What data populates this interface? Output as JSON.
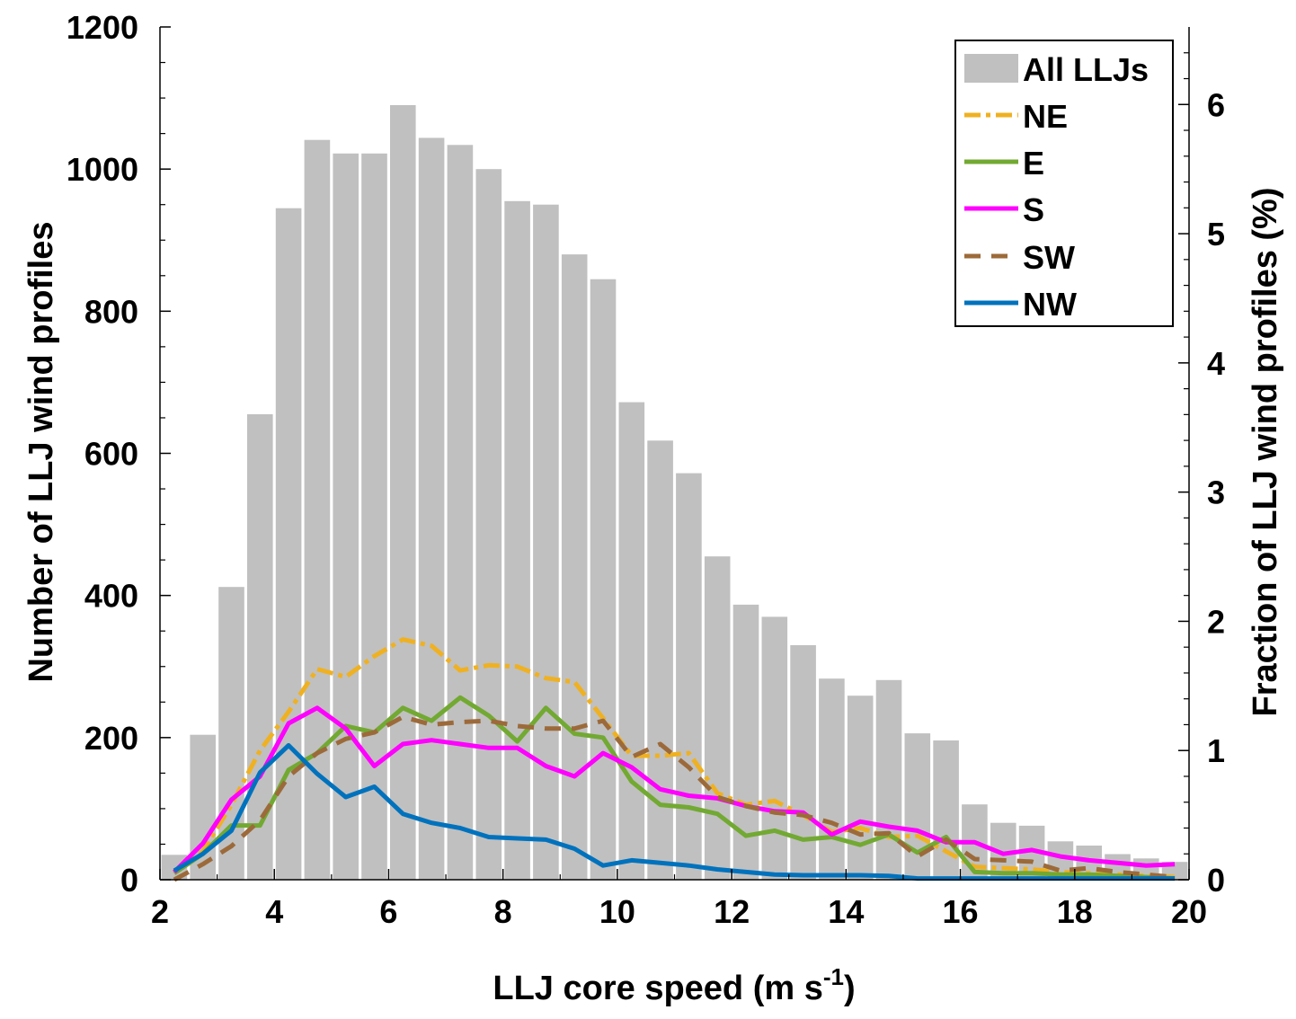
{
  "chart_data": {
    "type": "bar",
    "xlabel_main": "LLJ core speed (m s",
    "xlabel_sup": "-1",
    "xlabel_end": ")",
    "ylabel_left": "Number of LLJ wind profiles",
    "ylabel_right": "Fraction of LLJ wind profiles (%)",
    "xlim": [
      2,
      20
    ],
    "ylim_left": [
      0,
      1200
    ],
    "ylim_right": [
      0,
      6.6
    ],
    "x_ticks": [
      2,
      4,
      6,
      8,
      10,
      12,
      14,
      16,
      18,
      20
    ],
    "y_left_ticks": [
      0,
      200,
      400,
      600,
      800,
      1000,
      1200
    ],
    "y_right_ticks": [
      0,
      1,
      2,
      3,
      4,
      5,
      6
    ],
    "legend_position": "top-right",
    "bars": {
      "name": "All LLJs",
      "color": "#c0c0c0",
      "x": [
        2.25,
        2.75,
        3.25,
        3.75,
        4.25,
        4.75,
        5.25,
        5.75,
        6.25,
        6.75,
        7.25,
        7.75,
        8.25,
        8.75,
        9.25,
        9.75,
        10.25,
        10.75,
        11.25,
        11.75,
        12.25,
        12.75,
        13.25,
        13.75,
        14.25,
        14.75,
        15.25,
        15.75,
        16.25,
        16.75,
        17.25,
        17.75,
        18.25,
        18.75,
        19.25,
        19.75
      ],
      "values": [
        35,
        204,
        412,
        655,
        945,
        1041,
        1022,
        1022,
        1090,
        1044,
        1034,
        1000,
        955,
        950,
        880,
        845,
        672,
        618,
        572,
        455,
        387,
        370,
        330,
        283,
        259,
        281,
        206,
        196,
        106,
        80,
        76,
        54,
        48,
        36,
        30,
        25
      ]
    },
    "series": [
      {
        "name": "NE",
        "color": "#efb122",
        "dash": "dashdot",
        "x": [
          2.25,
          2.75,
          3.25,
          3.75,
          4.25,
          4.75,
          5.25,
          5.75,
          6.25,
          6.75,
          7.25,
          7.75,
          8.25,
          8.75,
          9.25,
          9.75,
          10.25,
          10.75,
          11.25,
          11.75,
          12.25,
          12.75,
          13.25,
          13.75,
          14.25,
          14.75,
          15.25,
          15.75,
          16.25,
          16.75,
          17.25,
          17.75,
          18.25,
          18.75,
          19.25,
          19.75
        ],
        "values": [
          0.05,
          0.22,
          0.58,
          1.0,
          1.3,
          1.63,
          1.57,
          1.73,
          1.86,
          1.81,
          1.62,
          1.66,
          1.65,
          1.56,
          1.53,
          1.25,
          0.96,
          0.96,
          0.98,
          0.67,
          0.58,
          0.61,
          0.5,
          0.37,
          0.4,
          0.33,
          0.34,
          0.22,
          0.1,
          0.09,
          0.08,
          0.06,
          0.05,
          0.04,
          0.03,
          0.02
        ]
      },
      {
        "name": "E",
        "color": "#72a932",
        "dash": "solid",
        "x": [
          2.25,
          2.75,
          3.25,
          3.75,
          4.25,
          4.75,
          5.25,
          5.75,
          6.25,
          6.75,
          7.25,
          7.75,
          8.25,
          8.75,
          9.25,
          9.75,
          10.25,
          10.75,
          11.25,
          11.75,
          12.25,
          12.75,
          13.25,
          13.75,
          14.25,
          14.75,
          15.25,
          15.75,
          16.25,
          16.75,
          17.25,
          17.75,
          18.25,
          18.75,
          19.25,
          19.75
        ],
        "values": [
          0.05,
          0.2,
          0.42,
          0.42,
          0.85,
          0.98,
          1.19,
          1.14,
          1.33,
          1.23,
          1.41,
          1.27,
          1.07,
          1.33,
          1.13,
          1.1,
          0.76,
          0.58,
          0.56,
          0.51,
          0.34,
          0.38,
          0.31,
          0.33,
          0.27,
          0.35,
          0.21,
          0.33,
          0.06,
          0.05,
          0.05,
          0.04,
          0.04,
          0.03,
          0.02,
          0.01
        ]
      },
      {
        "name": "S",
        "color": "#ff00ff",
        "dash": "solid",
        "x": [
          2.25,
          2.75,
          3.25,
          3.75,
          4.25,
          4.75,
          5.25,
          5.75,
          6.25,
          6.75,
          7.25,
          7.75,
          8.25,
          8.75,
          9.25,
          9.75,
          10.25,
          10.75,
          11.25,
          11.75,
          12.25,
          12.75,
          13.25,
          13.75,
          14.25,
          14.75,
          15.25,
          15.75,
          16.25,
          16.75,
          17.25,
          17.75,
          18.25,
          18.75,
          19.25,
          19.75
        ],
        "values": [
          0.06,
          0.28,
          0.62,
          0.8,
          1.21,
          1.33,
          1.17,
          0.88,
          1.05,
          1.08,
          1.05,
          1.02,
          1.02,
          0.88,
          0.8,
          0.98,
          0.87,
          0.7,
          0.65,
          0.63,
          0.57,
          0.53,
          0.52,
          0.35,
          0.45,
          0.41,
          0.38,
          0.29,
          0.29,
          0.2,
          0.23,
          0.18,
          0.15,
          0.13,
          0.11,
          0.12
        ]
      },
      {
        "name": "SW",
        "color": "#9c6a3a",
        "dash": "dashed",
        "x": [
          2.25,
          2.75,
          3.25,
          3.75,
          4.25,
          4.75,
          5.25,
          5.75,
          6.25,
          6.75,
          7.25,
          7.75,
          8.25,
          8.75,
          9.25,
          9.75,
          10.25,
          10.75,
          11.25,
          11.75,
          12.25,
          12.75,
          13.25,
          13.75,
          14.25,
          14.75,
          15.25,
          15.75,
          16.25,
          16.75,
          17.25,
          17.75,
          18.25,
          18.75,
          19.25,
          19.75
        ],
        "values": [
          0.0,
          0.12,
          0.26,
          0.46,
          0.8,
          0.98,
          1.09,
          1.14,
          1.26,
          1.2,
          1.22,
          1.23,
          1.19,
          1.17,
          1.17,
          1.23,
          0.95,
          1.05,
          0.87,
          0.64,
          0.57,
          0.52,
          0.5,
          0.44,
          0.35,
          0.36,
          0.18,
          0.31,
          0.16,
          0.15,
          0.14,
          0.07,
          0.09,
          0.06,
          0.04,
          0.02
        ]
      },
      {
        "name": "NW",
        "color": "#0072bd",
        "dash": "solid",
        "x": [
          2.25,
          2.75,
          3.25,
          3.75,
          4.25,
          4.75,
          5.25,
          5.75,
          6.25,
          6.75,
          7.25,
          7.75,
          8.25,
          8.75,
          9.25,
          9.75,
          10.25,
          10.75,
          11.25,
          11.75,
          12.25,
          12.75,
          13.25,
          13.75,
          14.25,
          14.75,
          15.25,
          15.75,
          16.25,
          16.75,
          17.25,
          17.75,
          18.25,
          18.75,
          19.25,
          19.75
        ],
        "values": [
          0.07,
          0.2,
          0.38,
          0.83,
          1.04,
          0.82,
          0.64,
          0.72,
          0.51,
          0.44,
          0.4,
          0.33,
          0.32,
          0.31,
          0.24,
          0.11,
          0.15,
          0.13,
          0.11,
          0.08,
          0.06,
          0.04,
          0.035,
          0.035,
          0.035,
          0.03,
          0.01,
          0.01,
          0.01,
          0.01,
          0.01,
          0.01,
          0.01,
          0.01,
          0.01,
          0.01
        ]
      }
    ]
  }
}
